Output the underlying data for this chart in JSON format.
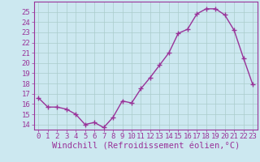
{
  "x": [
    0,
    1,
    2,
    3,
    4,
    5,
    6,
    7,
    8,
    9,
    10,
    11,
    12,
    13,
    14,
    15,
    16,
    17,
    18,
    19,
    20,
    21,
    22,
    23
  ],
  "y": [
    16.6,
    15.7,
    15.7,
    15.5,
    15.0,
    14.0,
    14.2,
    13.7,
    14.7,
    16.3,
    16.1,
    17.5,
    18.6,
    19.8,
    21.0,
    22.9,
    23.3,
    24.8,
    25.3,
    25.3,
    24.7,
    23.2,
    20.5,
    17.9
  ],
  "line_color": "#993399",
  "marker": "+",
  "markersize": 4,
  "linewidth": 1.0,
  "xlabel": "Windchill (Refroidissement éolien,°C)",
  "xlim": [
    -0.5,
    23.5
  ],
  "ylim": [
    13.5,
    26.0
  ],
  "yticks": [
    14,
    15,
    16,
    17,
    18,
    19,
    20,
    21,
    22,
    23,
    24,
    25
  ],
  "xticks": [
    0,
    1,
    2,
    3,
    4,
    5,
    6,
    7,
    8,
    9,
    10,
    11,
    12,
    13,
    14,
    15,
    16,
    17,
    18,
    19,
    20,
    21,
    22,
    23
  ],
  "bg_color": "#cce8f0",
  "grid_color": "#aacccc",
  "label_color": "#993399",
  "tick_fontsize": 6.5,
  "xlabel_fontsize": 7.5
}
